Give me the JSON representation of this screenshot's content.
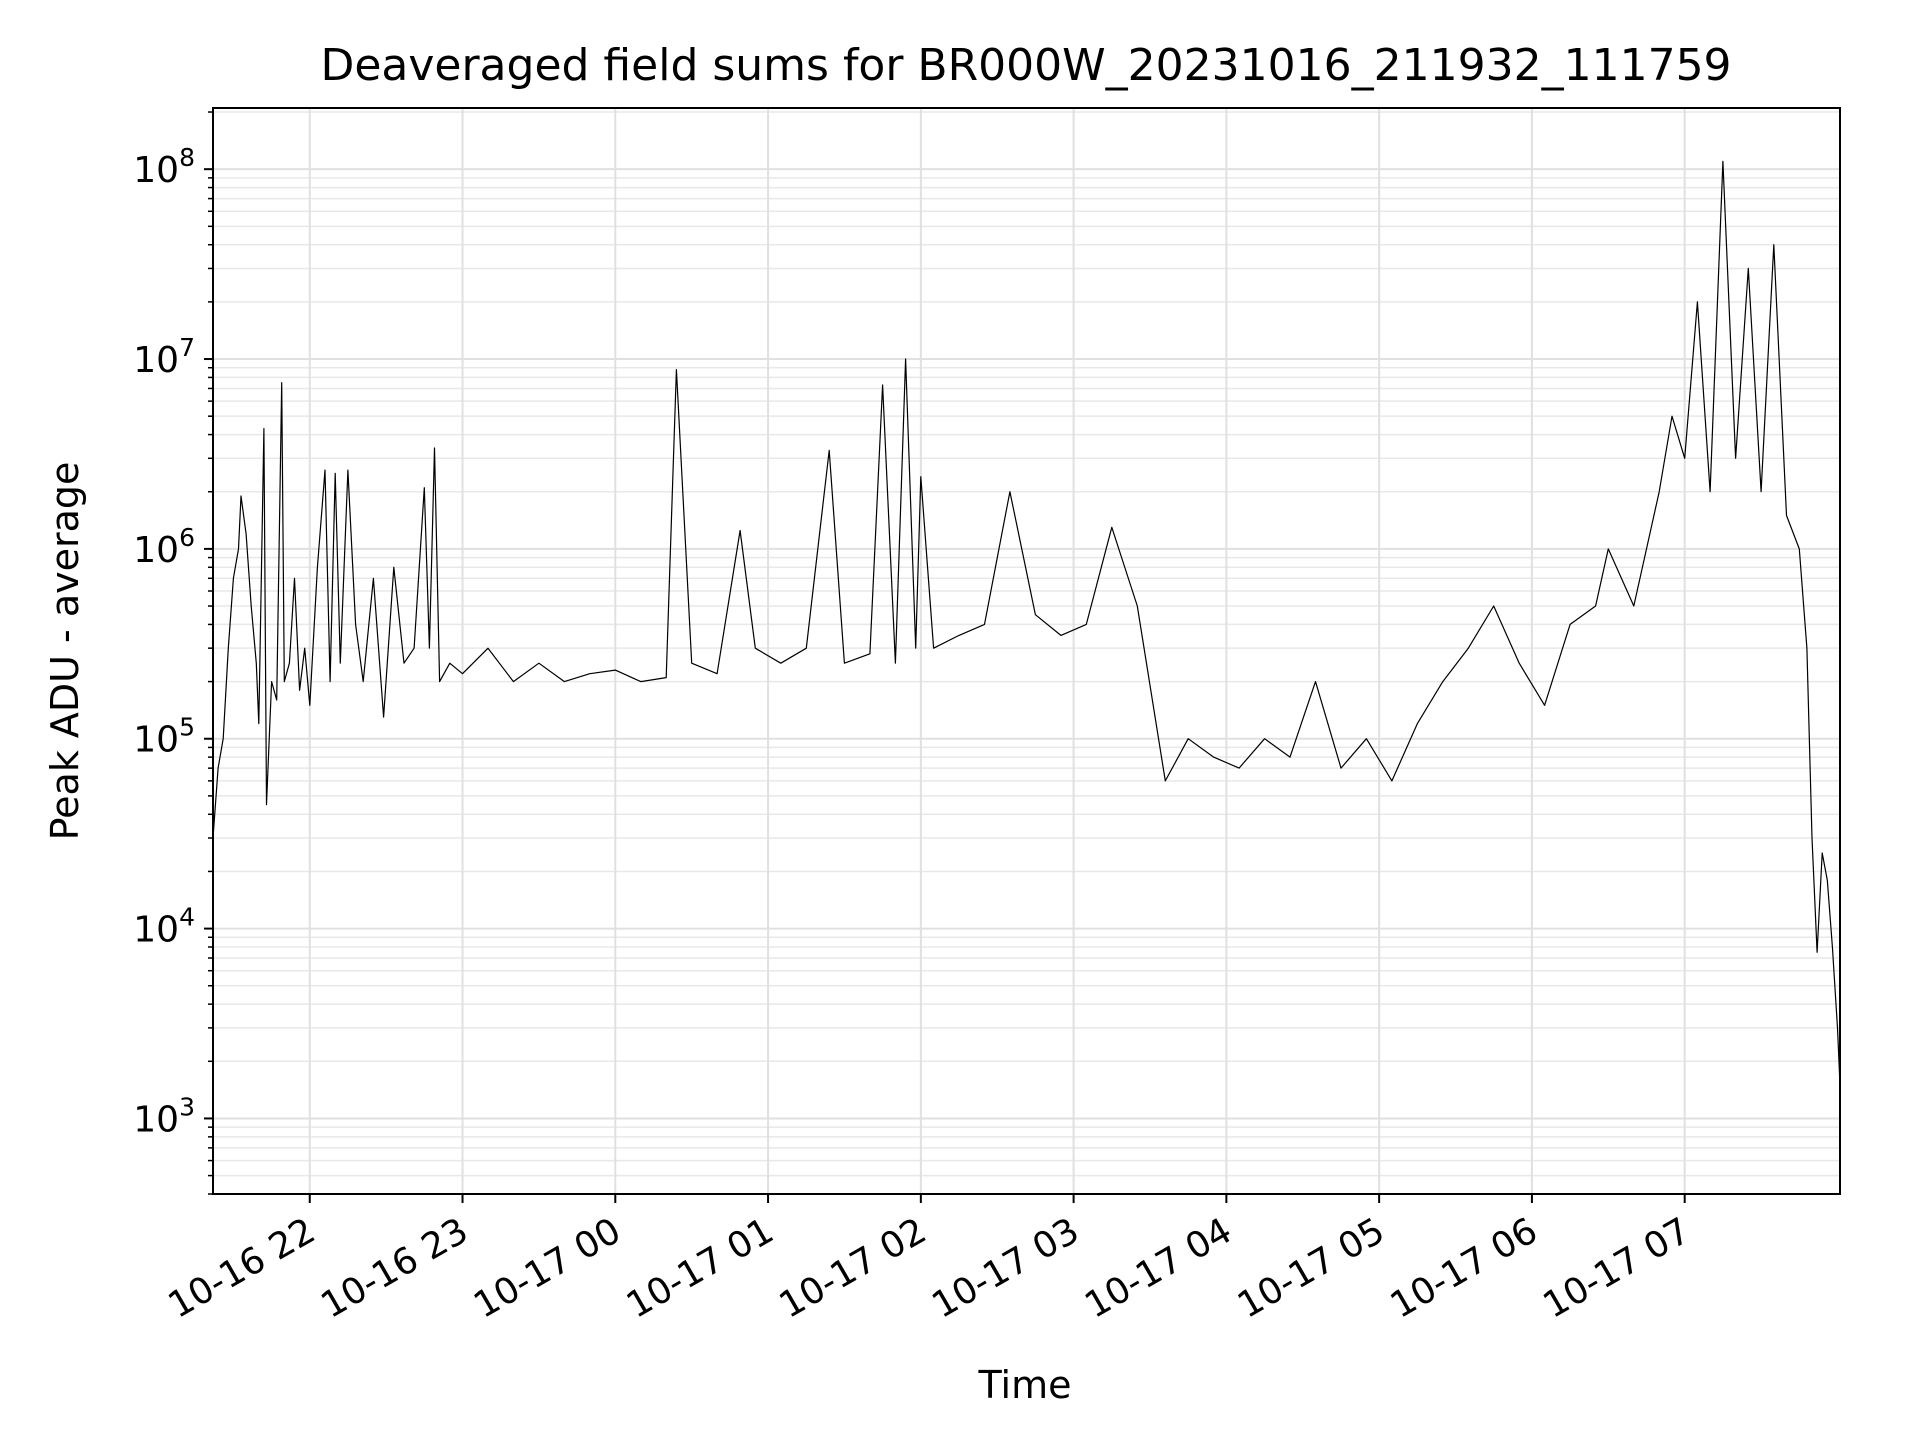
{
  "chart_data": {
    "type": "line",
    "title": "Deaveraged field sums for BR000W_20231016_211932_111759",
    "xlabel": "Time",
    "ylabel": "Peak ADU - average",
    "yscale": "log",
    "ylim": [
      400,
      210000000
    ],
    "xlim": [
      "2023-10-16 21:22",
      "2023-10-17 08:01"
    ],
    "grid": true,
    "grid_minor": true,
    "line_color": "#000000",
    "x_ticks": [
      {
        "x": "2023-10-16 22:00",
        "label": "10-16 22"
      },
      {
        "x": "2023-10-16 23:00",
        "label": "10-16 23"
      },
      {
        "x": "2023-10-17 00:00",
        "label": "10-17 00"
      },
      {
        "x": "2023-10-17 01:00",
        "label": "10-17 01"
      },
      {
        "x": "2023-10-17 02:00",
        "label": "10-17 02"
      },
      {
        "x": "2023-10-17 03:00",
        "label": "10-17 03"
      },
      {
        "x": "2023-10-17 04:00",
        "label": "10-17 04"
      },
      {
        "x": "2023-10-17 05:00",
        "label": "10-17 05"
      },
      {
        "x": "2023-10-17 06:00",
        "label": "10-17 06"
      },
      {
        "x": "2023-10-17 07:00",
        "label": "10-17 07"
      }
    ],
    "y_ticks": [
      {
        "value": 1000,
        "base": "10",
        "exp": "3"
      },
      {
        "value": 10000,
        "base": "10",
        "exp": "4"
      },
      {
        "value": 100000,
        "base": "10",
        "exp": "5"
      },
      {
        "value": 1000000,
        "base": "10",
        "exp": "6"
      },
      {
        "value": 10000000,
        "base": "10",
        "exp": "7"
      },
      {
        "value": 100000000,
        "base": "10",
        "exp": "8"
      }
    ],
    "series": [
      {
        "points": [
          [
            "2023-10-16 21:22",
            30000
          ],
          [
            "2023-10-16 21:24",
            70000
          ],
          [
            "2023-10-16 21:26",
            100000
          ],
          [
            "2023-10-16 21:28",
            300000
          ],
          [
            "2023-10-16 21:30",
            700000
          ],
          [
            "2023-10-16 21:32",
            1000000
          ],
          [
            "2023-10-16 21:33",
            1900000
          ],
          [
            "2023-10-16 21:35",
            1200000
          ],
          [
            "2023-10-16 21:37",
            500000
          ],
          [
            "2023-10-16 21:39",
            250000
          ],
          [
            "2023-10-16 21:40",
            120000
          ],
          [
            "2023-10-16 21:42",
            4300000
          ],
          [
            "2023-10-16 21:43",
            45000
          ],
          [
            "2023-10-16 21:45",
            200000
          ],
          [
            "2023-10-16 21:47",
            160000
          ],
          [
            "2023-10-16 21:49",
            7500000
          ],
          [
            "2023-10-16 21:50",
            200000
          ],
          [
            "2023-10-16 21:52",
            250000
          ],
          [
            "2023-10-16 21:54",
            700000
          ],
          [
            "2023-10-16 21:56",
            180000
          ],
          [
            "2023-10-16 21:58",
            300000
          ],
          [
            "2023-10-16 22:00",
            150000
          ],
          [
            "2023-10-16 22:03",
            800000
          ],
          [
            "2023-10-16 22:06",
            2600000
          ],
          [
            "2023-10-16 22:08",
            200000
          ],
          [
            "2023-10-16 22:10",
            2500000
          ],
          [
            "2023-10-16 22:12",
            250000
          ],
          [
            "2023-10-16 22:15",
            2600000
          ],
          [
            "2023-10-16 22:18",
            400000
          ],
          [
            "2023-10-16 22:21",
            200000
          ],
          [
            "2023-10-16 22:25",
            700000
          ],
          [
            "2023-10-16 22:29",
            130000
          ],
          [
            "2023-10-16 22:33",
            800000
          ],
          [
            "2023-10-16 22:37",
            250000
          ],
          [
            "2023-10-16 22:41",
            300000
          ],
          [
            "2023-10-16 22:45",
            2100000
          ],
          [
            "2023-10-16 22:47",
            300000
          ],
          [
            "2023-10-16 22:49",
            3400000
          ],
          [
            "2023-10-16 22:51",
            200000
          ],
          [
            "2023-10-16 22:55",
            250000
          ],
          [
            "2023-10-16 23:00",
            220000
          ],
          [
            "2023-10-16 23:10",
            300000
          ],
          [
            "2023-10-16 23:20",
            200000
          ],
          [
            "2023-10-16 23:30",
            250000
          ],
          [
            "2023-10-16 23:40",
            200000
          ],
          [
            "2023-10-16 23:50",
            220000
          ],
          [
            "2023-10-17 00:00",
            230000
          ],
          [
            "2023-10-17 00:10",
            200000
          ],
          [
            "2023-10-17 00:20",
            210000
          ],
          [
            "2023-10-17 00:24",
            8800000
          ],
          [
            "2023-10-17 00:30",
            250000
          ],
          [
            "2023-10-17 00:40",
            220000
          ],
          [
            "2023-10-17 00:49",
            1250000
          ],
          [
            "2023-10-17 00:55",
            300000
          ],
          [
            "2023-10-17 01:05",
            250000
          ],
          [
            "2023-10-17 01:15",
            300000
          ],
          [
            "2023-10-17 01:24",
            3300000
          ],
          [
            "2023-10-17 01:30",
            250000
          ],
          [
            "2023-10-17 01:40",
            280000
          ],
          [
            "2023-10-17 01:45",
            7300000
          ],
          [
            "2023-10-17 01:50",
            250000
          ],
          [
            "2023-10-17 01:54",
            10000000
          ],
          [
            "2023-10-17 01:58",
            300000
          ],
          [
            "2023-10-17 02:00",
            2400000
          ],
          [
            "2023-10-17 02:05",
            300000
          ],
          [
            "2023-10-17 02:15",
            350000
          ],
          [
            "2023-10-17 02:25",
            400000
          ],
          [
            "2023-10-17 02:35",
            2000000
          ],
          [
            "2023-10-17 02:45",
            450000
          ],
          [
            "2023-10-17 02:55",
            350000
          ],
          [
            "2023-10-17 03:05",
            400000
          ],
          [
            "2023-10-17 03:15",
            1300000
          ],
          [
            "2023-10-17 03:25",
            500000
          ],
          [
            "2023-10-17 03:36",
            60000
          ],
          [
            "2023-10-17 03:45",
            100000
          ],
          [
            "2023-10-17 03:55",
            80000
          ],
          [
            "2023-10-17 04:05",
            70000
          ],
          [
            "2023-10-17 04:15",
            100000
          ],
          [
            "2023-10-17 04:25",
            80000
          ],
          [
            "2023-10-17 04:35",
            200000
          ],
          [
            "2023-10-17 04:45",
            70000
          ],
          [
            "2023-10-17 04:55",
            100000
          ],
          [
            "2023-10-17 05:05",
            60000
          ],
          [
            "2023-10-17 05:15",
            120000
          ],
          [
            "2023-10-17 05:25",
            200000
          ],
          [
            "2023-10-17 05:35",
            300000
          ],
          [
            "2023-10-17 05:45",
            500000
          ],
          [
            "2023-10-17 05:55",
            250000
          ],
          [
            "2023-10-17 06:05",
            150000
          ],
          [
            "2023-10-17 06:15",
            400000
          ],
          [
            "2023-10-17 06:25",
            500000
          ],
          [
            "2023-10-17 06:30",
            1000000
          ],
          [
            "2023-10-17 06:40",
            500000
          ],
          [
            "2023-10-17 06:50",
            2000000
          ],
          [
            "2023-10-17 06:55",
            5000000
          ],
          [
            "2023-10-17 07:00",
            3000000
          ],
          [
            "2023-10-17 07:05",
            20000000
          ],
          [
            "2023-10-17 07:10",
            2000000
          ],
          [
            "2023-10-17 07:15",
            110000000
          ],
          [
            "2023-10-17 07:20",
            3000000
          ],
          [
            "2023-10-17 07:25",
            30000000
          ],
          [
            "2023-10-17 07:30",
            2000000
          ],
          [
            "2023-10-17 07:35",
            40000000
          ],
          [
            "2023-10-17 07:40",
            1500000
          ],
          [
            "2023-10-17 07:45",
            1000000
          ],
          [
            "2023-10-17 07:48",
            300000
          ],
          [
            "2023-10-17 07:50",
            30000
          ],
          [
            "2023-10-17 07:52",
            7500
          ],
          [
            "2023-10-17 07:54",
            25000
          ],
          [
            "2023-10-17 07:56",
            18000
          ],
          [
            "2023-10-17 07:58",
            8000
          ],
          [
            "2023-10-17 08:00",
            3000
          ],
          [
            "2023-10-17 08:01",
            1500
          ]
        ]
      }
    ]
  }
}
